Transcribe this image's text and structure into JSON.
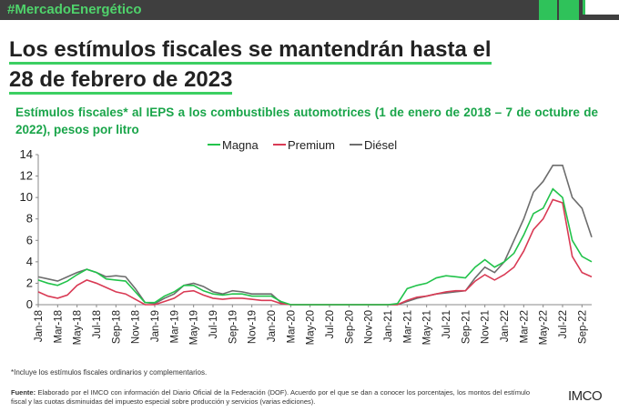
{
  "header": {
    "tag": "#MercadoEnergético",
    "title": [
      "Los estímulos fiscales se mantendrán hasta el",
      "28 de febrero de 2023"
    ]
  },
  "chart_data": {
    "type": "line",
    "title": "Estímulos fiscales* al IEPS a los combustibles automotrices (1 de enero de 2018 – 7 de octubre de 2022), pesos por litro",
    "categories": [
      "Jan-18",
      null,
      "Mar-18",
      null,
      "May-18",
      null,
      "Jul-18",
      null,
      "Sep-18",
      null,
      "Nov-18",
      null,
      "Jan-19",
      null,
      "Mar-19",
      null,
      "May-19",
      null,
      "Jul-19",
      null,
      "Sep-19",
      null,
      "Nov-19",
      null,
      "Jan-20",
      null,
      "Mar-20",
      null,
      "May-20",
      null,
      "Jul-20",
      null,
      "Sep-20",
      null,
      "Nov-20",
      null,
      "Jan-21",
      null,
      "Mar-21",
      null,
      "May-21",
      null,
      "Jul-21",
      null,
      "Sep-21",
      null,
      "Nov-21",
      null,
      "Jan-22",
      null,
      "Mar-22",
      null,
      "May-22",
      null,
      "Jul-22",
      null,
      "Sep-22",
      null
    ],
    "series": [
      {
        "name": "Magna",
        "color": "#22c34b",
        "values": [
          2.3,
          2.0,
          1.8,
          2.2,
          2.8,
          3.3,
          3.0,
          2.4,
          2.3,
          2.2,
          1.2,
          0.2,
          0.2,
          0.8,
          1.2,
          1.8,
          1.8,
          1.3,
          1.0,
          0.9,
          1.0,
          1.0,
          0.8,
          0.8,
          0.8,
          0.3,
          0,
          0,
          0,
          0,
          0,
          0,
          0,
          0,
          0,
          0,
          0,
          0.1,
          1.5,
          1.8,
          2.0,
          2.5,
          2.7,
          2.6,
          2.5,
          3.5,
          4.2,
          3.5,
          4.0,
          4.8,
          6.5,
          8.5,
          9.0,
          10.8,
          10.0,
          6.0,
          4.5,
          4.0
        ]
      },
      {
        "name": "Premium",
        "color": "#d93a54",
        "values": [
          1.2,
          0.8,
          0.6,
          0.9,
          1.8,
          2.3,
          2.0,
          1.6,
          1.2,
          1.0,
          0.5,
          0,
          0,
          0.3,
          0.6,
          1.2,
          1.3,
          0.9,
          0.6,
          0.5,
          0.6,
          0.6,
          0.5,
          0.4,
          0.4,
          0.1,
          0,
          0,
          0,
          0,
          0,
          0,
          0,
          0,
          0,
          0,
          0,
          0,
          0.4,
          0.7,
          0.8,
          1.0,
          1.2,
          1.3,
          1.3,
          2.2,
          2.8,
          2.3,
          2.8,
          3.5,
          5.0,
          7.0,
          8.0,
          9.8,
          9.5,
          4.5,
          3.0,
          2.6
        ]
      },
      {
        "name": "Diésel",
        "color": "#6d6d6d",
        "values": [
          2.6,
          2.4,
          2.2,
          2.6,
          3.0,
          3.3,
          3.0,
          2.6,
          2.7,
          2.6,
          1.5,
          0.2,
          0.1,
          0.6,
          1.0,
          1.8,
          2.0,
          1.7,
          1.2,
          1.0,
          1.3,
          1.2,
          1.0,
          1.0,
          1.0,
          0.2,
          0,
          0,
          0,
          0,
          0,
          0,
          0,
          0,
          0,
          0,
          0,
          0,
          0.3,
          0.6,
          0.8,
          1.0,
          1.1,
          1.2,
          1.3,
          2.5,
          3.5,
          3.0,
          4.0,
          6.0,
          8.0,
          10.5,
          11.5,
          13.0,
          13.0,
          10.0,
          9.0,
          6.3
        ]
      }
    ],
    "ylim": [
      0,
      14
    ],
    "yticks": [
      0,
      2,
      4,
      6,
      8,
      10,
      12,
      14
    ],
    "grid": false,
    "legend": "top"
  },
  "footer": {
    "note": "*Incluye los estímulos fiscales ordinarios y complementarios.",
    "source_label": "Fuente:",
    "source": "Elaborado por el IMCO con información del Diario Oficial de la Federación (DOF). Acuerdo por el que se dan a conocer los porcentajes, los montos del estímulo fiscal y las cuotas disminuidas del impuesto especial sobre producción y servicios (varias ediciones).",
    "logo": "IMCO"
  }
}
